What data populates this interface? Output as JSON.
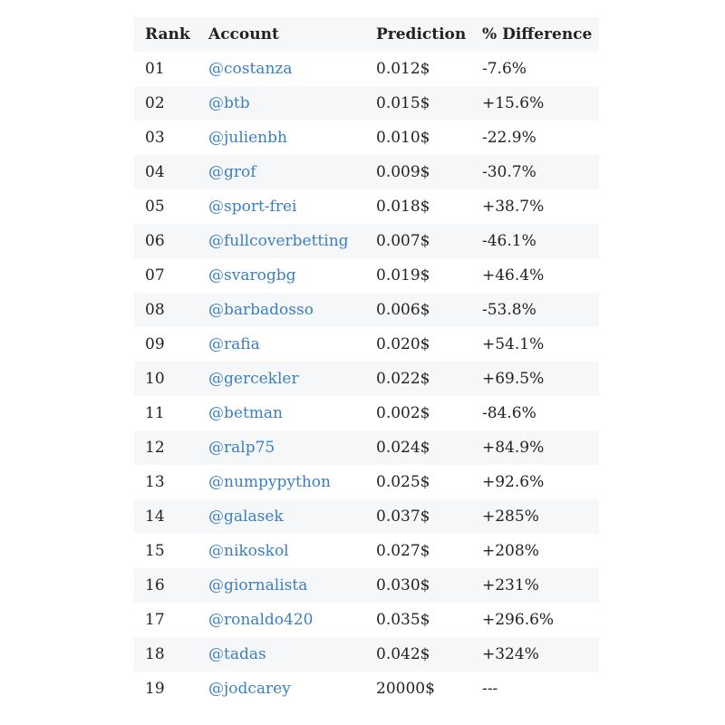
{
  "table": {
    "headers": {
      "rank": "Rank",
      "account": "Account",
      "prediction": "Prediction",
      "difference": "% Difference"
    },
    "link_color": "#3a7fc4",
    "stripe_color": "#f6f7f8",
    "rows": [
      {
        "rank": "01",
        "account": "@costanza",
        "prediction": "0.012$",
        "difference": "-7.6%"
      },
      {
        "rank": "02",
        "account": "@btb",
        "prediction": "0.015$",
        "difference": "+15.6%"
      },
      {
        "rank": "03",
        "account": "@julienbh",
        "prediction": "0.010$",
        "difference": "-22.9%"
      },
      {
        "rank": "04",
        "account": "@grof",
        "prediction": "0.009$",
        "difference": "-30.7%"
      },
      {
        "rank": "05",
        "account": "@sport-frei",
        "prediction": "0.018$",
        "difference": "+38.7%"
      },
      {
        "rank": "06",
        "account": "@fullcoverbetting",
        "prediction": "0.007$",
        "difference": "-46.1%"
      },
      {
        "rank": "07",
        "account": "@svarogbg",
        "prediction": "0.019$",
        "difference": "+46.4%"
      },
      {
        "rank": "08",
        "account": "@barbadosso",
        "prediction": "0.006$",
        "difference": "-53.8%"
      },
      {
        "rank": "09",
        "account": "@rafia",
        "prediction": "0.020$",
        "difference": "+54.1%"
      },
      {
        "rank": "10",
        "account": "@gercekler",
        "prediction": "0.022$",
        "difference": "+69.5%"
      },
      {
        "rank": "11",
        "account": "@betman",
        "prediction": "0.002$",
        "difference": "-84.6%"
      },
      {
        "rank": "12",
        "account": "@ralp75",
        "prediction": "0.024$",
        "difference": "+84.9%"
      },
      {
        "rank": "13",
        "account": "@numpypython",
        "prediction": "0.025$",
        "difference": "+92.6%"
      },
      {
        "rank": "14",
        "account": "@galasek",
        "prediction": "0.037$",
        "difference": "+285%"
      },
      {
        "rank": "15",
        "account": "@nikoskol",
        "prediction": "0.027$",
        "difference": "+208%"
      },
      {
        "rank": "16",
        "account": "@giornalista",
        "prediction": "0.030$",
        "difference": "+231%"
      },
      {
        "rank": "17",
        "account": "@ronaldo420",
        "prediction": "0.035$",
        "difference": "+296.6%"
      },
      {
        "rank": "18",
        "account": "@tadas",
        "prediction": "0.042$",
        "difference": "+324%"
      },
      {
        "rank": "19",
        "account": "@jodcarey",
        "prediction": "20000$",
        "difference": "---"
      }
    ]
  }
}
